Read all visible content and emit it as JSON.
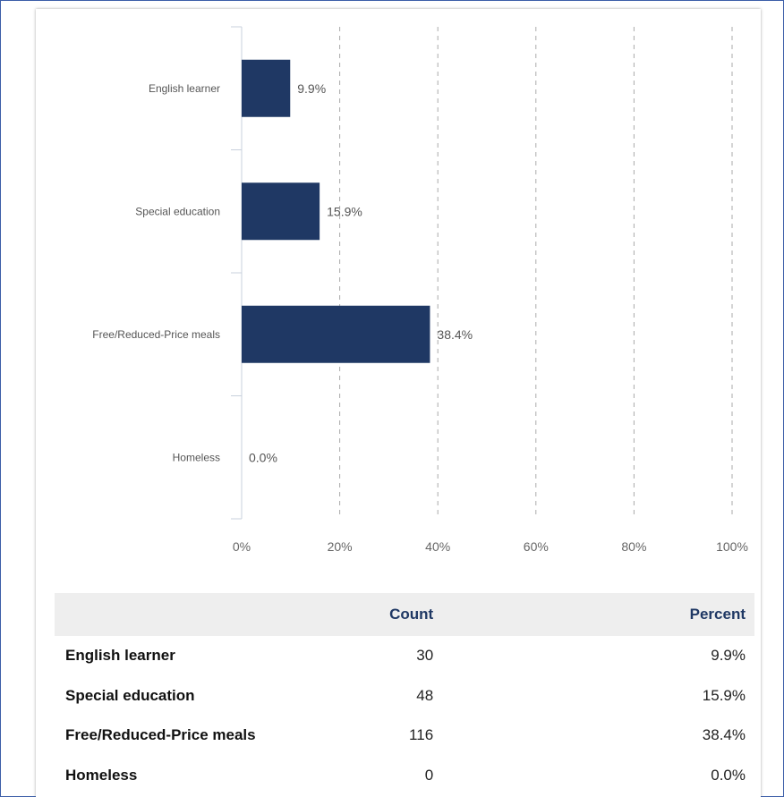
{
  "chart_data": {
    "type": "bar",
    "orientation": "horizontal",
    "categories": [
      "English learner",
      "Special education",
      "Free/Reduced-Price meals",
      "Homeless"
    ],
    "values": [
      9.9,
      15.9,
      38.4,
      0.0
    ],
    "data_labels": [
      "9.9%",
      "15.9%",
      "38.4%",
      "0.0%"
    ],
    "xlim": [
      0,
      100
    ],
    "xticks": [
      "0%",
      "20%",
      "40%",
      "60%",
      "80%",
      "100%"
    ],
    "grid": "vertical dashed",
    "bar_color": "#1f3864"
  },
  "table": {
    "headers": {
      "label": "",
      "count": "Count",
      "percent": "Percent"
    },
    "rows": [
      {
        "label": "English learner",
        "count": "30",
        "percent": "9.9%"
      },
      {
        "label": "Special education",
        "count": "48",
        "percent": "15.9%"
      },
      {
        "label": "Free/Reduced-Price meals",
        "count": "116",
        "percent": "38.4%"
      },
      {
        "label": "Homeless",
        "count": "0",
        "percent": "0.0%"
      }
    ]
  }
}
